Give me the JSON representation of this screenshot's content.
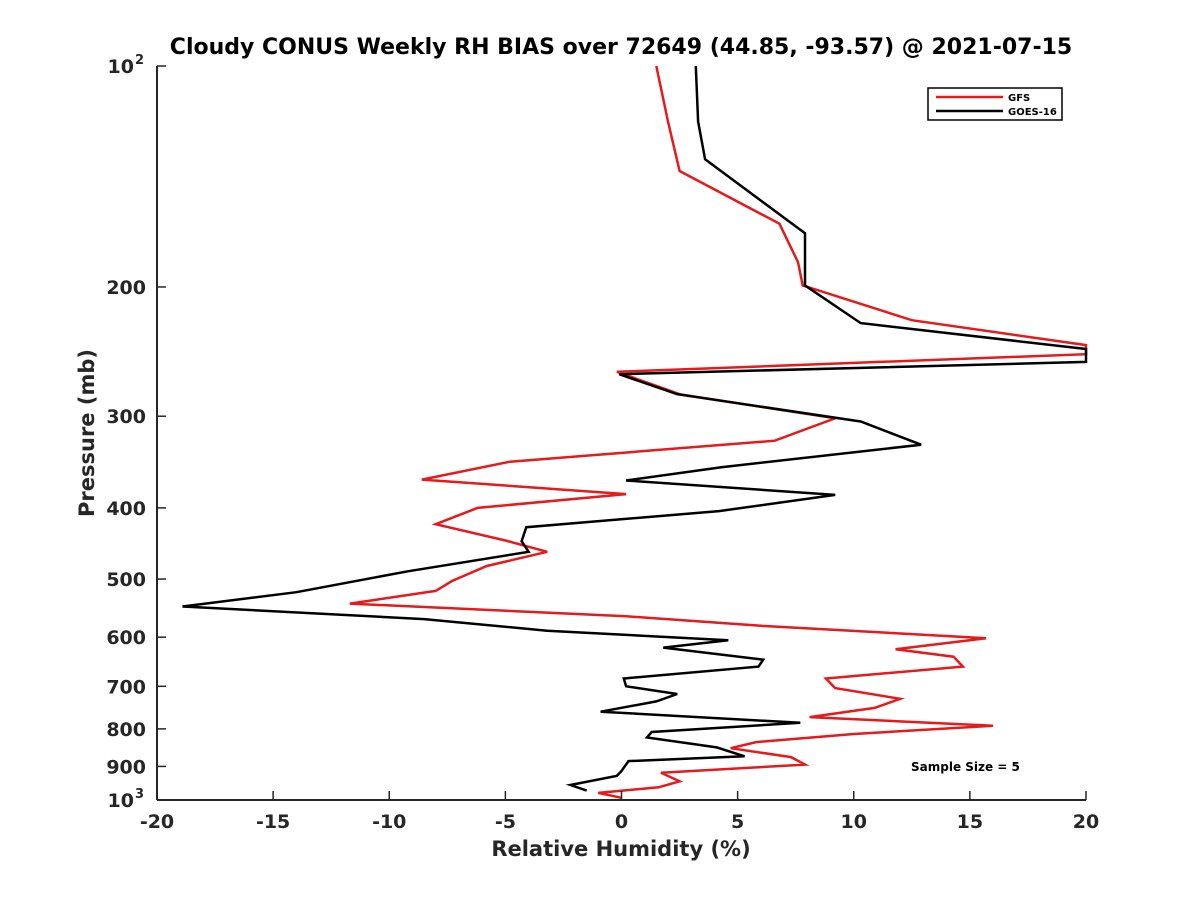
{
  "chart_data": {
    "type": "line",
    "title": "Cloudy CONUS Weekly RH BIAS over 72649 (44.85, -93.57) @ 2021-07-15",
    "xlabel": "Relative Humidity (%)",
    "ylabel": "Pressure (mb)",
    "xlim": [
      -20,
      20
    ],
    "ylim": [
      100,
      1000
    ],
    "y_scale": "log",
    "y_reversed": true,
    "grid": false,
    "legend_position": "top-right",
    "x_ticks": [
      {
        "value": -20,
        "label": "-20"
      },
      {
        "value": -15,
        "label": "-15"
      },
      {
        "value": -10,
        "label": "-10"
      },
      {
        "value": -5,
        "label": "-5"
      },
      {
        "value": 0,
        "label": "0"
      },
      {
        "value": 5,
        "label": "5"
      },
      {
        "value": 10,
        "label": "10"
      },
      {
        "value": 15,
        "label": "15"
      },
      {
        "value": 20,
        "label": "20"
      }
    ],
    "y_ticks": [
      {
        "value": 100,
        "label": "10",
        "sup": "2"
      },
      {
        "value": 200,
        "label": "200",
        "sup": ""
      },
      {
        "value": 300,
        "label": "300",
        "sup": ""
      },
      {
        "value": 400,
        "label": "400",
        "sup": ""
      },
      {
        "value": 500,
        "label": "500",
        "sup": ""
      },
      {
        "value": 600,
        "label": "600",
        "sup": ""
      },
      {
        "value": 700,
        "label": "700",
        "sup": ""
      },
      {
        "value": 800,
        "label": "800",
        "sup": ""
      },
      {
        "value": 900,
        "label": "900",
        "sup": ""
      },
      {
        "value": 1000,
        "label": "10",
        "sup": "3"
      }
    ],
    "annotation": "Sample Size = 5",
    "series": [
      {
        "name": "GFS",
        "color": "#e41a1c",
        "points": [
          [
            1.5,
            100
          ],
          [
            2.0,
            119
          ],
          [
            2.5,
            139
          ],
          [
            6.8,
            164
          ],
          [
            7.6,
            185
          ],
          [
            7.8,
            199
          ],
          [
            12.5,
            222
          ],
          [
            20.0,
            240
          ],
          [
            20.0,
            247
          ],
          [
            -0.2,
            261
          ],
          [
            2.5,
            280
          ],
          [
            9.2,
            302
          ],
          [
            6.6,
            324
          ],
          [
            -4.8,
            346
          ],
          [
            -8.6,
            366
          ],
          [
            0.2,
            383
          ],
          [
            -6.2,
            400
          ],
          [
            -8.0,
            421
          ],
          [
            -5.0,
            443
          ],
          [
            -3.2,
            459
          ],
          [
            -5.8,
            480
          ],
          [
            -7.3,
            503
          ],
          [
            -8.0,
            519
          ],
          [
            -11.7,
            540
          ],
          [
            0.2,
            562
          ],
          [
            6.0,
            579
          ],
          [
            15.7,
            602
          ],
          [
            11.8,
            623
          ],
          [
            14.3,
            638
          ],
          [
            14.7,
            658
          ],
          [
            8.8,
            683
          ],
          [
            9.2,
            704
          ],
          [
            12.0,
            728
          ],
          [
            10.9,
            749
          ],
          [
            8.1,
            771
          ],
          [
            16.0,
            792
          ],
          [
            10.0,
            813
          ],
          [
            5.8,
            834
          ],
          [
            4.7,
            850
          ],
          [
            7.3,
            874
          ],
          [
            7.9,
            895
          ],
          [
            1.7,
            918
          ],
          [
            2.5,
            943
          ],
          [
            1.6,
            961
          ],
          [
            -1.0,
            978
          ],
          [
            0.0,
            993
          ]
        ]
      },
      {
        "name": "GOES-16",
        "color": "#000000",
        "points": [
          [
            3.2,
            100
          ],
          [
            3.3,
            119
          ],
          [
            3.6,
            134
          ],
          [
            7.9,
            169
          ],
          [
            7.9,
            185
          ],
          [
            7.9,
            199
          ],
          [
            10.3,
            224
          ],
          [
            20.0,
            243
          ],
          [
            20.0,
            253
          ],
          [
            -0.1,
            263
          ],
          [
            2.4,
            280
          ],
          [
            10.3,
            305
          ],
          [
            12.9,
            328
          ],
          [
            4.3,
            352
          ],
          [
            0.2,
            367
          ],
          [
            9.2,
            384
          ],
          [
            4.2,
            404
          ],
          [
            -4.1,
            425
          ],
          [
            -4.3,
            444
          ],
          [
            -4.0,
            459
          ],
          [
            -9.2,
            488
          ],
          [
            -14.0,
            521
          ],
          [
            -18.9,
            545
          ],
          [
            -8.5,
            567
          ],
          [
            -3.2,
            588
          ],
          [
            4.6,
            606
          ],
          [
            1.8,
            620
          ],
          [
            6.1,
            644
          ],
          [
            5.9,
            658
          ],
          [
            0.1,
            683
          ],
          [
            0.2,
            700
          ],
          [
            2.4,
            717
          ],
          [
            1.5,
            734
          ],
          [
            -0.9,
            758
          ],
          [
            7.7,
            785
          ],
          [
            1.3,
            808
          ],
          [
            1.1,
            822
          ],
          [
            4.1,
            848
          ],
          [
            5.3,
            872
          ],
          [
            0.3,
            885
          ],
          [
            0.0,
            913
          ],
          [
            -0.2,
            927
          ],
          [
            -2.2,
            954
          ],
          [
            -1.5,
            971
          ]
        ]
      }
    ]
  }
}
